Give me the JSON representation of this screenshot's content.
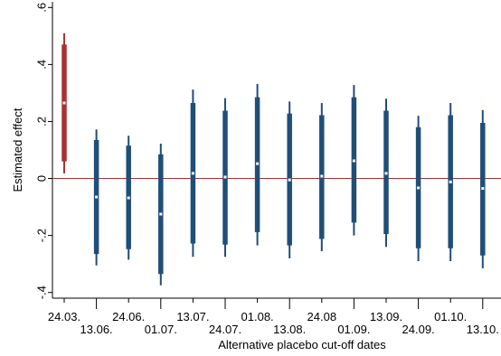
{
  "chart_data": {
    "type": "scatter",
    "subtype": "coefficient-plot",
    "title": "",
    "xlabel": "Alternative placebo cut-off dates",
    "ylabel": "Estimated effect",
    "ylim": [
      -0.42,
      0.62
    ],
    "yticks": [
      -0.4,
      -0.2,
      0,
      0.2,
      0.4,
      0.6
    ],
    "ytick_labels": [
      "-.4",
      "-.2",
      "0",
      ".2",
      ".4",
      ".6"
    ],
    "zero_line": true,
    "grid": false,
    "categories": [
      "24.03.",
      "13.06.",
      "24.06.",
      "01.07.",
      "13.07.",
      "24.07.",
      "01.08.",
      "13.08.",
      "24.08",
      "01.09.",
      "13.09.",
      "24.09.",
      "01.10.",
      "13.10."
    ],
    "label_row": [
      "top",
      "bottom",
      "top",
      "bottom",
      "top",
      "bottom",
      "top",
      "bottom",
      "top",
      "bottom",
      "top",
      "bottom",
      "top",
      "bottom"
    ],
    "series": [
      {
        "estimate": [
          0.265,
          -0.065,
          -0.068,
          -0.125,
          0.018,
          0.005,
          0.052,
          -0.005,
          0.008,
          0.062,
          0.018,
          -0.033,
          -0.012,
          -0.035
        ],
        "ci95_low": [
          0.018,
          -0.305,
          -0.285,
          -0.375,
          -0.275,
          -0.275,
          -0.235,
          -0.28,
          -0.255,
          -0.2,
          -0.24,
          -0.29,
          -0.29,
          -0.315
        ],
        "ci95_high": [
          0.51,
          0.172,
          0.15,
          0.122,
          0.312,
          0.282,
          0.332,
          0.27,
          0.265,
          0.328,
          0.28,
          0.22,
          0.265,
          0.24
        ],
        "ci90_low": [
          0.06,
          -0.265,
          -0.248,
          -0.335,
          -0.228,
          -0.232,
          -0.188,
          -0.235,
          -0.212,
          -0.155,
          -0.195,
          -0.245,
          -0.245,
          -0.27
        ],
        "ci90_high": [
          0.47,
          0.135,
          0.115,
          0.085,
          0.265,
          0.238,
          0.285,
          0.228,
          0.222,
          0.285,
          0.238,
          0.18,
          0.222,
          0.195
        ],
        "highlight_index": 0
      }
    ],
    "colors": {
      "highlight": "#a83232",
      "default": "#1f4e79",
      "estimate_marker": "#ffffff",
      "zero_line": "#a83232",
      "axis": "#000000"
    }
  }
}
